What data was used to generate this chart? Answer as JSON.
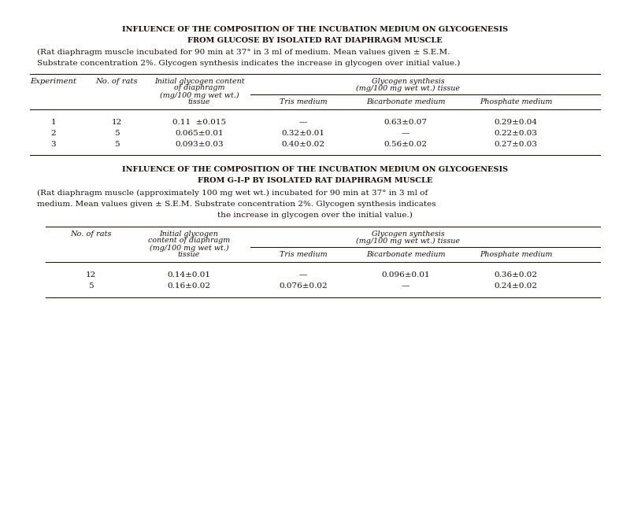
{
  "background_color": "#ffffff",
  "title1_line1": "INFLUENCE OF THE COMPOSITION OF THE INCUBATION MEDIUM ON GLYCOGENESIS",
  "title1_line2": "FROM GLUCOSE BY ISOLATED RAT DIAPHRAGM MUSCLE",
  "subtitle1_l1": "(Rat diaphragm muscle incubated for 90 min at 37° in 3 ml of medium. Mean values given ± S.E.M.",
  "subtitle1_l2": "Substrate concentration 2%. Glycogen synthesis indicates the increase in glycogen over initial value.)",
  "title2_line1": "INFLUENCE OF THE COMPOSITION OF THE INCUBATION MEDIUM ON GLYCOGENESIS",
  "title2_line2": "FROM G-I-P BY ISOLATED RAT DIAPHRAGM MUSCLE",
  "subtitle2_l1": "(Rat diaphragm muscle (approximately 100 mg wet wt.) incubated for 90 min at 37° in 3 ml of",
  "subtitle2_l2": "medium. Mean values given ± S.E.M. Substrate concentration 2%. Glycogen synthesis indicates",
  "subtitle2_l3": "the increase in glycogen over the initial value.)",
  "table1_rows": [
    [
      "1",
      "12",
      "0.11  ±0.015",
      "—",
      "0.63±0.07",
      "0.29±0.04"
    ],
    [
      "2",
      "5",
      "0.065±0.01",
      "0.32±0.01",
      "—",
      "0.22±0.03"
    ],
    [
      "3",
      "5",
      "0.093±0.03",
      "0.40±0.02",
      "0.56±0.02",
      "0.27±0.03"
    ]
  ],
  "table2_rows": [
    [
      "12",
      "0.14±0.01",
      "—",
      "0.096±0.01",
      "0.36±0.02"
    ],
    [
      "5",
      "0.16±0.02",
      "0.076±0.02",
      "—",
      "0.24±0.02"
    ]
  ],
  "text_color": "#1a1008",
  "line_color": "#2a1a0a"
}
